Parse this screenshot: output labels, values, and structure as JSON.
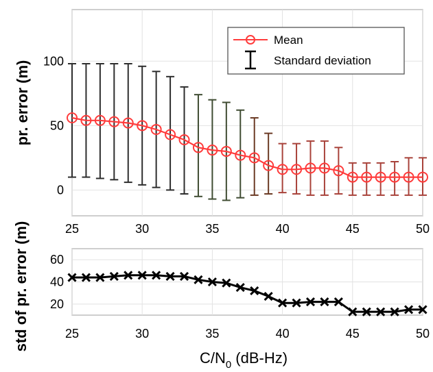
{
  "chart_data": [
    {
      "type": "line",
      "ylabel": "pr. error (m)",
      "xlim": [
        25,
        50
      ],
      "ylim": [
        -20,
        140
      ],
      "x_ticks": [
        25,
        30,
        35,
        40,
        45,
        50
      ],
      "y_ticks": [
        0,
        50,
        100
      ],
      "grid": true,
      "legend_position": "top-right",
      "series": [
        {
          "name": "Mean",
          "color": "#ff3b3b",
          "marker": "circle",
          "x": [
            25,
            26,
            27,
            28,
            29,
            30,
            31,
            32,
            33,
            34,
            35,
            36,
            37,
            38,
            39,
            40,
            41,
            42,
            43,
            44,
            45,
            46,
            47,
            48,
            49,
            50
          ],
          "values": [
            56,
            54,
            54,
            53,
            52,
            50,
            47,
            43,
            39,
            33,
            31,
            30,
            27,
            25,
            19,
            16,
            16,
            17,
            17,
            15,
            10,
            10,
            10,
            10,
            10,
            10
          ]
        },
        {
          "name": "Standard deviation",
          "type": "errorbar",
          "x": [
            25,
            26,
            27,
            28,
            29,
            30,
            31,
            32,
            33,
            34,
            35,
            36,
            37,
            38,
            39,
            40,
            41,
            42,
            43,
            44,
            45,
            46,
            47,
            48,
            49,
            50
          ],
          "lower": [
            10,
            10,
            9,
            8,
            6,
            4,
            2,
            0,
            -3,
            -5,
            -7,
            -8,
            -6,
            -4,
            -3,
            -2,
            -3,
            -4,
            -4,
            -3,
            -4,
            -4,
            -4,
            -4,
            -4,
            -4
          ],
          "upper": [
            98,
            98,
            98,
            98,
            98,
            96,
            92,
            88,
            80,
            74,
            70,
            68,
            62,
            56,
            44,
            36,
            36,
            38,
            38,
            33,
            21,
            21,
            21,
            22,
            25,
            25
          ]
        }
      ]
    },
    {
      "type": "line",
      "xlabel": "C/N",
      "xlabel_subscript": "0",
      "xlabel_suffix": " (dB-Hz)",
      "ylabel": "std of pr. error (m)",
      "xlim": [
        25,
        50
      ],
      "ylim": [
        10,
        70
      ],
      "x_ticks": [
        25,
        30,
        35,
        40,
        45,
        50
      ],
      "y_ticks": [
        20,
        40,
        60
      ],
      "grid": true,
      "series": [
        {
          "color": "#000000",
          "marker": "x",
          "x": [
            25,
            26,
            27,
            28,
            29,
            30,
            31,
            32,
            33,
            34,
            35,
            36,
            37,
            38,
            39,
            40,
            41,
            42,
            43,
            44,
            45,
            46,
            47,
            48,
            49,
            50
          ],
          "values": [
            44,
            44,
            44,
            45,
            46,
            46,
            46,
            45,
            45,
            42,
            40,
            39,
            35,
            32,
            27,
            21,
            21,
            22,
            22,
            22,
            13,
            13,
            13,
            13,
            15,
            15
          ]
        }
      ]
    }
  ]
}
